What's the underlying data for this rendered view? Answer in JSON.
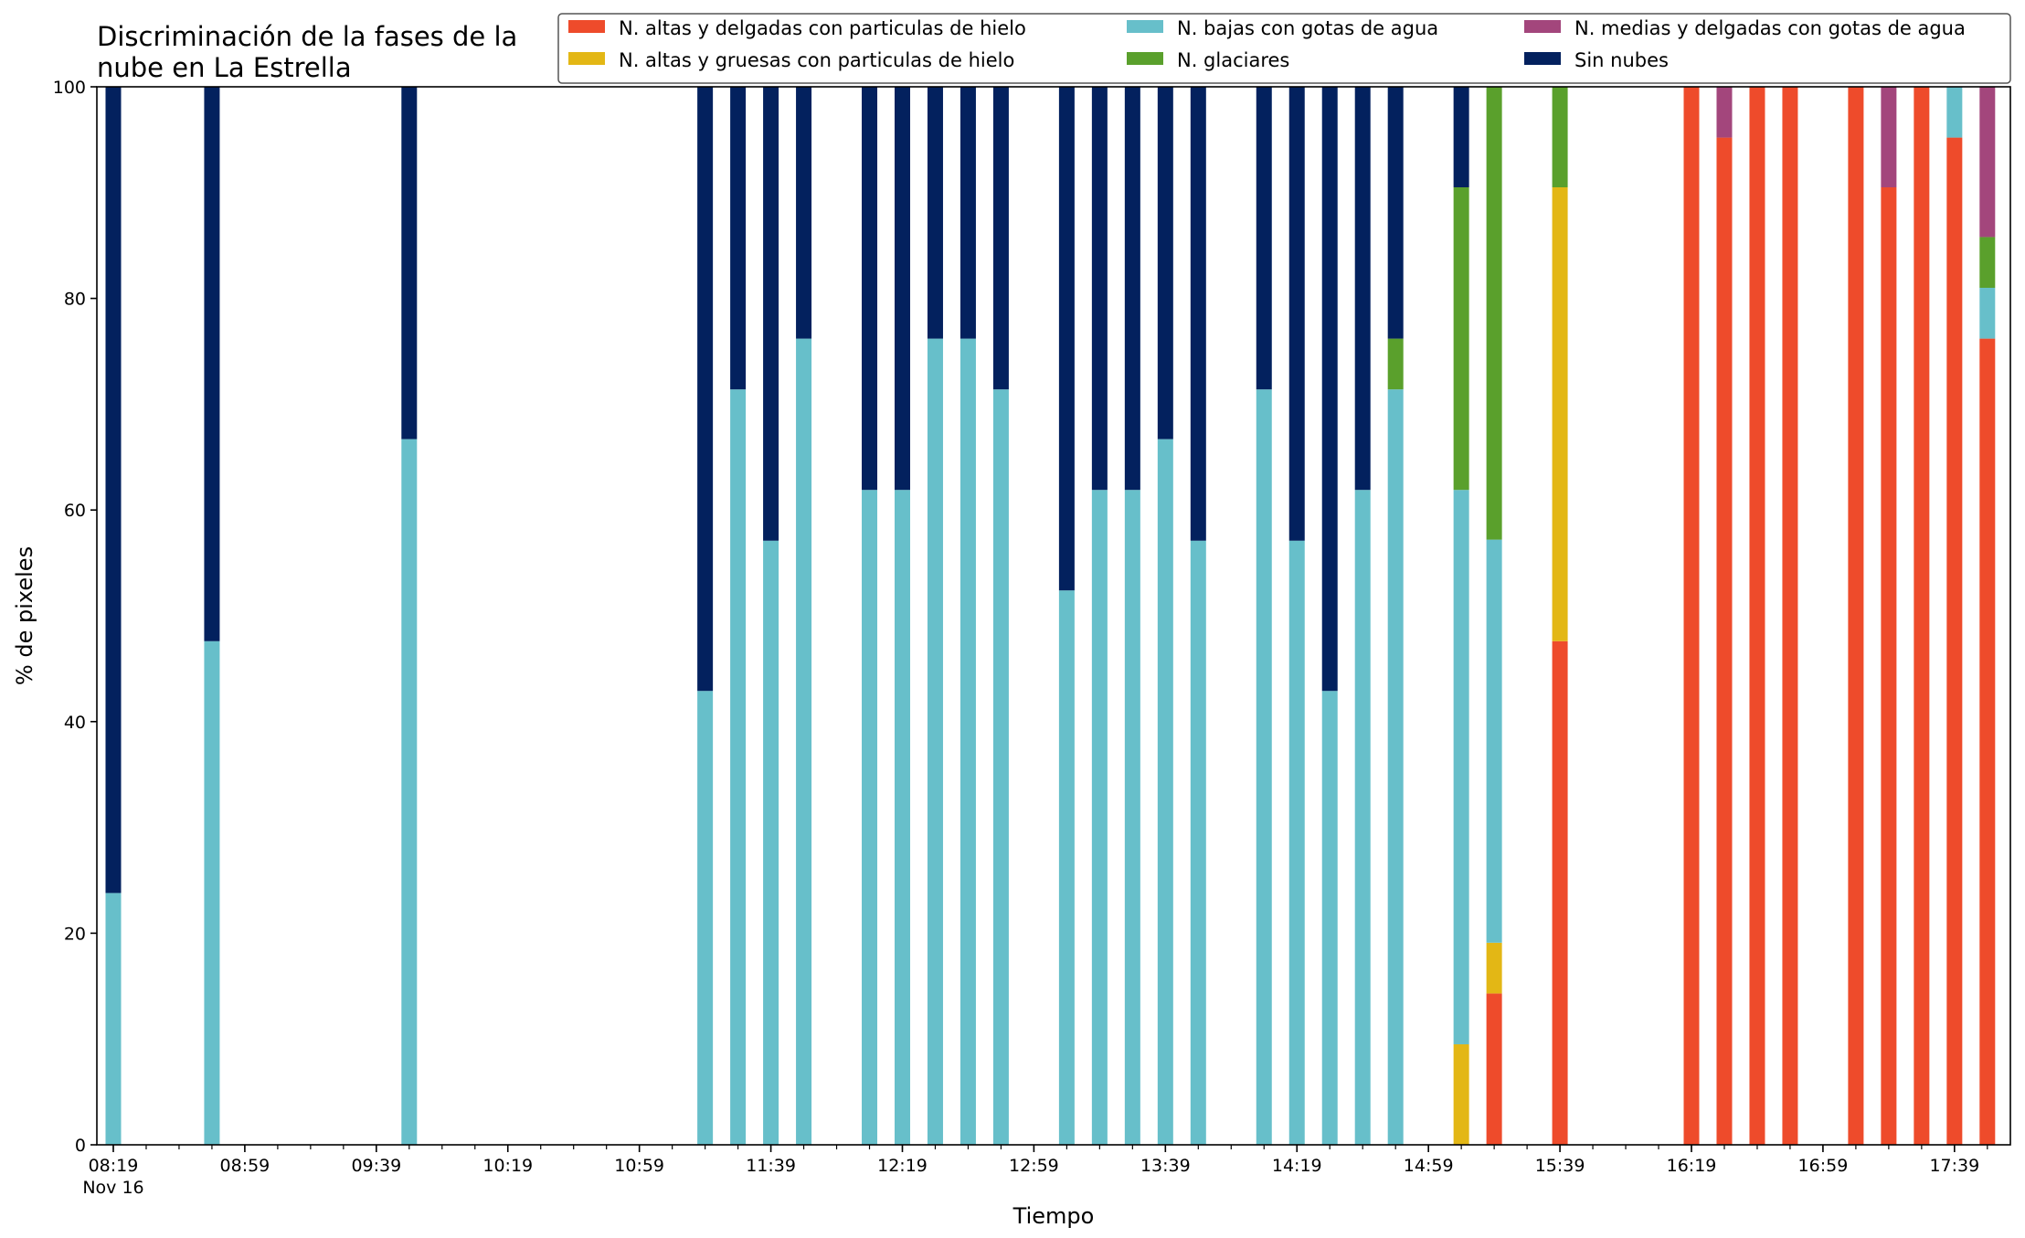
{
  "chart_data": {
    "type": "bar",
    "stacked": true,
    "title": "Discriminación de la fases de la\nnube en La Estrella",
    "xlabel": "Tiempo",
    "ylabel": "% de pixeles",
    "ylim": [
      0,
      100
    ],
    "yticks": [
      0,
      20,
      40,
      60,
      80,
      100
    ],
    "x_tick_labels": [
      "08:19",
      "08:59",
      "09:39",
      "10:19",
      "10:59",
      "11:39",
      "12:19",
      "12:59",
      "13:39",
      "14:19",
      "14:59",
      "15:39",
      "16:19",
      "16:59",
      "17:39"
    ],
    "x_date_label": "Nov 16",
    "legend_position": "top-right",
    "legend": [
      {
        "key": "alt_delg_hielo",
        "label": "N. altas y delgadas con particulas de hielo",
        "color": "#ee4b2b"
      },
      {
        "key": "alt_grue_hielo",
        "label": "N. altas y gruesas con particulas de hielo",
        "color": "#e3b715"
      },
      {
        "key": "bajas_agua",
        "label": "N. bajas con gotas de agua",
        "color": "#67bfca"
      },
      {
        "key": "glaciares",
        "label": "N. glaciares",
        "color": "#5aa02c"
      },
      {
        "key": "medias_agua",
        "label": "N. medias y delgadas con gotas de agua",
        "color": "#a3467c"
      },
      {
        "key": "sin_nubes",
        "label": "Sin nubes",
        "color": "#03215e"
      }
    ],
    "stack_order": [
      "alt_delg_hielo",
      "alt_grue_hielo",
      "bajas_agua",
      "glaciares",
      "medias_agua",
      "sin_nubes"
    ],
    "bars": [
      {
        "time": "08:19",
        "bajas_agua": 23.8,
        "sin_nubes": 76.2
      },
      {
        "time": "08:49",
        "bajas_agua": 47.6,
        "sin_nubes": 52.4
      },
      {
        "time": "09:49",
        "bajas_agua": 66.7,
        "sin_nubes": 33.3
      },
      {
        "time": "11:19",
        "bajas_agua": 42.9,
        "sin_nubes": 57.1
      },
      {
        "time": "11:29",
        "bajas_agua": 71.4,
        "sin_nubes": 28.6
      },
      {
        "time": "11:39",
        "bajas_agua": 57.1,
        "sin_nubes": 42.9
      },
      {
        "time": "11:49",
        "bajas_agua": 76.2,
        "sin_nubes": 23.8
      },
      {
        "time": "12:09",
        "bajas_agua": 61.9,
        "sin_nubes": 38.1
      },
      {
        "time": "12:19",
        "bajas_agua": 61.9,
        "sin_nubes": 38.1
      },
      {
        "time": "12:29",
        "bajas_agua": 76.2,
        "sin_nubes": 23.8
      },
      {
        "time": "12:39",
        "bajas_agua": 76.2,
        "sin_nubes": 23.8
      },
      {
        "time": "12:49",
        "bajas_agua": 71.4,
        "sin_nubes": 28.6
      },
      {
        "time": "13:09",
        "bajas_agua": 52.4,
        "sin_nubes": 47.6
      },
      {
        "time": "13:19",
        "bajas_agua": 61.9,
        "sin_nubes": 38.1
      },
      {
        "time": "13:29",
        "bajas_agua": 61.9,
        "sin_nubes": 38.1
      },
      {
        "time": "13:39",
        "bajas_agua": 66.7,
        "sin_nubes": 33.3
      },
      {
        "time": "13:49",
        "bajas_agua": 57.1,
        "sin_nubes": 42.9
      },
      {
        "time": "14:09",
        "bajas_agua": 71.4,
        "sin_nubes": 28.6
      },
      {
        "time": "14:19",
        "bajas_agua": 57.1,
        "sin_nubes": 42.9
      },
      {
        "time": "14:29",
        "bajas_agua": 42.9,
        "sin_nubes": 57.1
      },
      {
        "time": "14:39",
        "bajas_agua": 61.9,
        "sin_nubes": 38.1
      },
      {
        "time": "14:49",
        "bajas_agua": 71.4,
        "glaciares": 4.8,
        "sin_nubes": 23.8
      },
      {
        "time": "15:09",
        "alt_grue_hielo": 9.5,
        "bajas_agua": 52.4,
        "glaciares": 28.6,
        "sin_nubes": 9.5
      },
      {
        "time": "15:19",
        "alt_delg_hielo": 14.3,
        "alt_grue_hielo": 4.8,
        "bajas_agua": 38.1,
        "glaciares": 42.8
      },
      {
        "time": "15:39",
        "alt_delg_hielo": 47.6,
        "alt_grue_hielo": 42.9,
        "glaciares": 9.5
      },
      {
        "time": "16:19",
        "alt_delg_hielo": 100
      },
      {
        "time": "16:29",
        "alt_delg_hielo": 95.2,
        "medias_agua": 4.8
      },
      {
        "time": "16:39",
        "alt_delg_hielo": 100
      },
      {
        "time": "16:49",
        "alt_delg_hielo": 100
      },
      {
        "time": "17:09",
        "alt_delg_hielo": 100
      },
      {
        "time": "17:19",
        "alt_delg_hielo": 90.5,
        "medias_agua": 9.5
      },
      {
        "time": "17:29",
        "alt_delg_hielo": 100
      },
      {
        "time": "17:39",
        "alt_delg_hielo": 95.2,
        "bajas_agua": 4.8
      },
      {
        "time": "17:49",
        "alt_delg_hielo": 76.2,
        "bajas_agua": 4.8,
        "glaciares": 4.8,
        "medias_agua": 14.2
      }
    ]
  }
}
